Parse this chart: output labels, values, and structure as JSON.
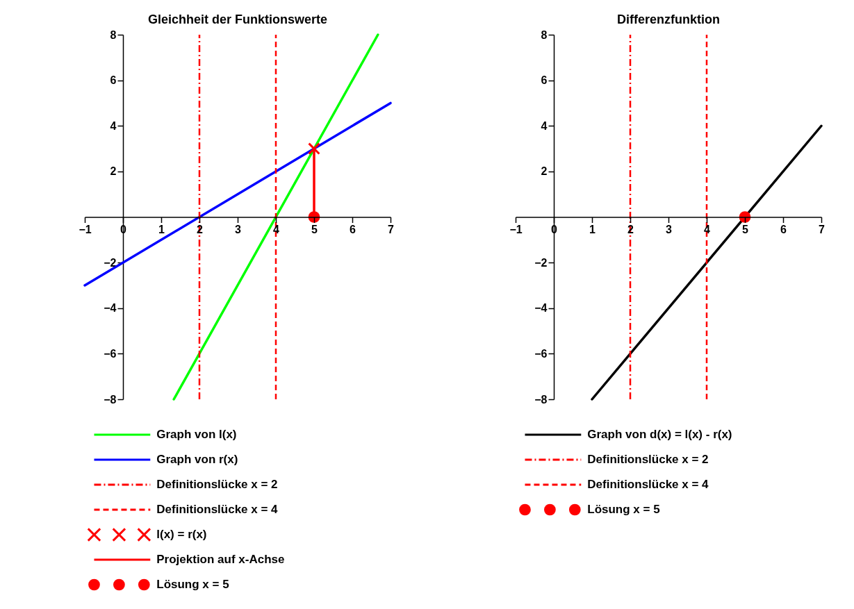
{
  "chart_data": [
    {
      "type": "line",
      "title": "Gleichheit der Funktionswerte",
      "xlim": [
        -1,
        7
      ],
      "ylim": [
        -8,
        8
      ],
      "xticks": [
        -1,
        0,
        1,
        2,
        3,
        4,
        5,
        6,
        7
      ],
      "yticks": [
        -8,
        -6,
        -4,
        -2,
        2,
        4,
        6,
        8
      ],
      "legend": "bottom",
      "series": [
        {
          "name": "Graph von l(x)",
          "color": "#00ff00",
          "x": [
            1.33,
            6.67
          ],
          "values": [
            -8,
            8
          ]
        },
        {
          "name": "Graph von r(x)",
          "color": "#0000ff",
          "x": [
            -1,
            7
          ],
          "values": [
            -3,
            5
          ]
        },
        {
          "type": "scatter",
          "name": "l(x) = r(x)",
          "color": "#ff0000",
          "marker": "cross",
          "x": [
            5
          ],
          "values": [
            3
          ]
        },
        {
          "type": "line",
          "name": "Projektion auf x-Achse",
          "color": "#ff0000",
          "x": [
            5,
            5
          ],
          "values": [
            3,
            0
          ]
        },
        {
          "type": "scatter",
          "name": "Lösung x = 5",
          "color": "#ff0000",
          "marker": "circle",
          "x": [
            5
          ],
          "values": [
            0
          ]
        }
      ],
      "ref_lines": [
        {
          "axis": "x",
          "value": 2,
          "label": "Definitionslücke x = 2",
          "color": "#ff0000",
          "line_style": "dashdot"
        },
        {
          "axis": "x",
          "value": 4,
          "label": "Definitionslücke x = 4",
          "color": "#ff0000",
          "line_style": "dashed"
        }
      ]
    },
    {
      "type": "line",
      "title": "Differenzfunktion",
      "xlim": [
        -1,
        7
      ],
      "ylim": [
        -8,
        8
      ],
      "xticks": [
        -1,
        0,
        1,
        2,
        3,
        4,
        5,
        6,
        7
      ],
      "yticks": [
        -8,
        -6,
        -4,
        -2,
        2,
        4,
        6,
        8
      ],
      "legend": "bottom",
      "series": [
        {
          "name": "Graph von d(x) = l(x) - r(x)",
          "color": "#000000",
          "x": [
            1,
            7
          ],
          "values": [
            -8,
            4
          ]
        },
        {
          "type": "scatter",
          "name": "Lösung x = 5",
          "color": "#ff0000",
          "marker": "circle",
          "x": [
            5
          ],
          "values": [
            0
          ]
        }
      ],
      "ref_lines": [
        {
          "axis": "x",
          "value": 2,
          "label": "Definitionslücke x = 2",
          "color": "#ff0000",
          "line_style": "dashdot"
        },
        {
          "axis": "x",
          "value": 4,
          "label": "Definitionslücke x = 4",
          "color": "#ff0000",
          "line_style": "dashed"
        }
      ]
    }
  ]
}
